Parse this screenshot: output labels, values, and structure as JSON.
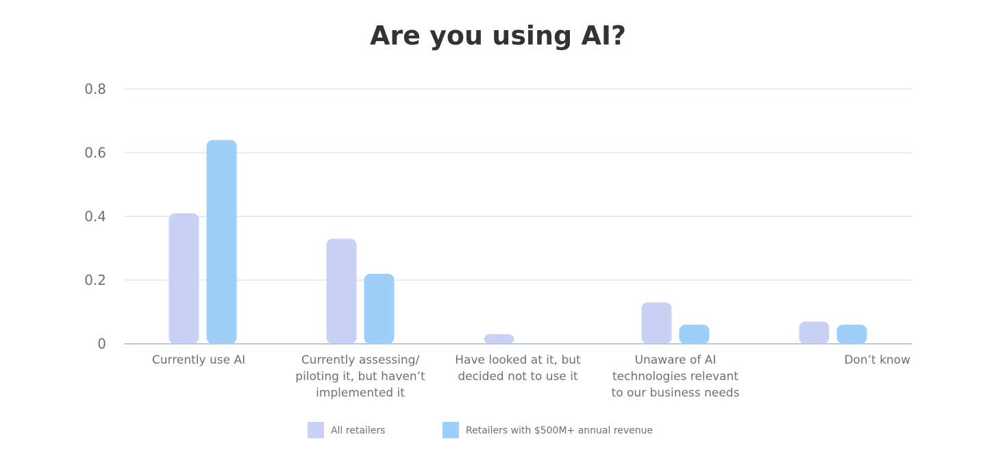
{
  "chart_data": {
    "type": "bar",
    "title": "Are you using AI?",
    "xlabel": "",
    "ylabel": "",
    "ylim": [
      0,
      0.8
    ],
    "yticks": [
      0,
      0.2,
      0.4,
      0.6,
      0.8
    ],
    "ytick_labels": [
      "0",
      "0.2",
      "0.4",
      "0.6",
      "0.8"
    ],
    "grid": true,
    "legend_position": "bottom-center",
    "categories": [
      [
        "Currently use AI"
      ],
      [
        "Currently assessing/",
        "piloting it, but haven’t",
        "implemented it"
      ],
      [
        "Have looked at it, but",
        "decided not to use it"
      ],
      [
        "Unaware of AI",
        "technologies relevant",
        "to our business needs"
      ],
      [
        "Don’t know"
      ]
    ],
    "series": [
      {
        "name": "All retailers",
        "color": "#c9d1f4",
        "values": [
          0.41,
          0.33,
          0.03,
          0.13,
          0.07
        ]
      },
      {
        "name": "Retailers with $500M+ annual revenue",
        "color": "#9dcff9",
        "values": [
          0.64,
          0.22,
          0,
          0.06,
          0.06
        ]
      }
    ]
  },
  "colors": {
    "title": "#333333",
    "gridline": "#cdd6ee",
    "axis": "#b8c8de",
    "text": "#6f6f6f"
  }
}
